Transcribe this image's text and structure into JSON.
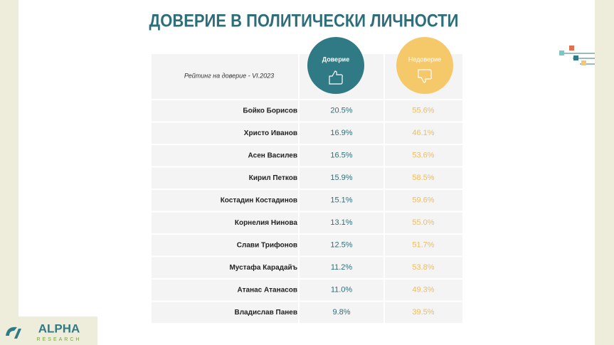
{
  "header": {
    "title": "ДОВЕРИЕ В ПОЛИТИЧЕСКИ ЛИЧНОСТИ"
  },
  "table": {
    "caption": "Рейтинг на доверие - VI.2023",
    "columns": [
      "Доверие",
      "Недоверие"
    ],
    "rows": [
      [
        "Бойко Борисов",
        "20.5%",
        "55.6%"
      ],
      [
        "Христо Иванов",
        "16.9%",
        "46.1%"
      ],
      [
        "Асен Василев",
        "16.5%",
        "53.6%"
      ],
      [
        "Кирил Петков",
        "15.9%",
        "58.5%"
      ],
      [
        "Костадин Костадинов",
        "15.1%",
        "59.6%"
      ],
      [
        "Корнелия Нинова",
        "13.1%",
        "55.0%"
      ],
      [
        "Слави Трифонов",
        "12.5%",
        "51.7%"
      ],
      [
        "Мустафа Карадайъ",
        "11.2%",
        "53.8%"
      ],
      [
        "Атанас Атанасов",
        "11.0%",
        "49.3%"
      ],
      [
        "Владислав Панев",
        "9.8%",
        "39.5%"
      ]
    ]
  },
  "logo": {
    "name": "ALPHA",
    "sub": "RESEARCH"
  }
}
